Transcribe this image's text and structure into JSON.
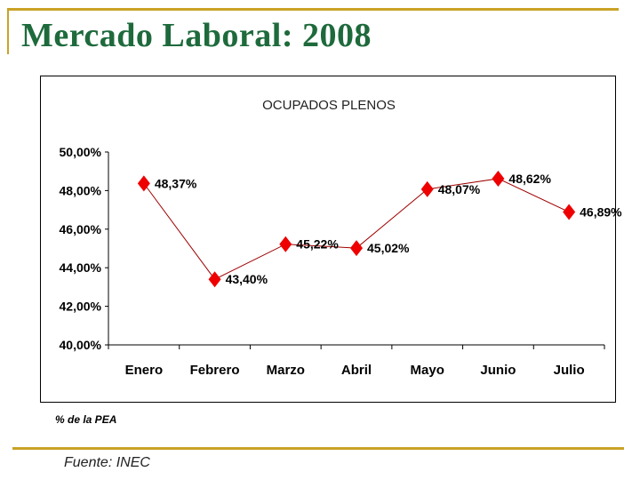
{
  "slide": {
    "title": "Mercado Laboral: 2008",
    "note": "% de la PEA",
    "source": "Fuente: INEC"
  },
  "colors": {
    "title": "#1e6a3c",
    "rule": "#c9a227",
    "marker": "#ee0000",
    "line": "#a00000"
  },
  "chart_data": {
    "type": "line",
    "title": "OCUPADOS PLENOS",
    "categories": [
      "Enero",
      "Febrero",
      "Marzo",
      "Abril",
      "Mayo",
      "Junio",
      "Julio"
    ],
    "values": [
      48.37,
      43.4,
      45.22,
      45.02,
      48.07,
      48.62,
      46.89
    ],
    "data_labels": [
      "48,37%",
      "43,40%",
      "45,22%",
      "45,02%",
      "48,07%",
      "48,62%",
      "46,89%"
    ],
    "yticks": [
      "40,00%",
      "42,00%",
      "44,00%",
      "46,00%",
      "48,00%",
      "50,00%"
    ],
    "ylim": [
      40,
      50
    ],
    "grid": false,
    "marker": "diamond"
  }
}
